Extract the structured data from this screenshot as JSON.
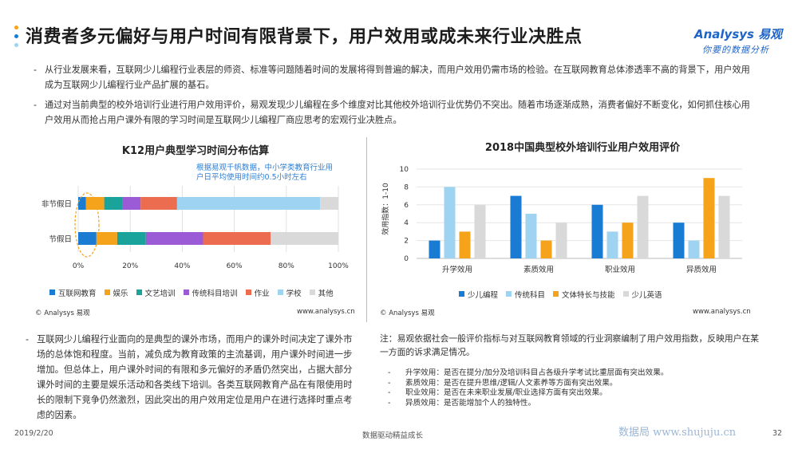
{
  "header": {
    "title": "消费者多元偏好与用户时间有限背景下，用户效用或成未来行业决胜点",
    "brand_name": "Analysys 易观",
    "brand_tagline": "你要的数据分析"
  },
  "intro": {
    "paragraph_1": "从行业发展来看，互联网少儿编程行业表层的师资、标准等问题随着时间的发展将得到普遍的解决，而用户效用仍需市场的检验。在互联网教育总体渗透率不高的背景下，用户效用成为互联网少儿编程行业产品扩展的基石。",
    "paragraph_2": "通过对当前典型的校外培训行业进行用户效用评价，易观发现少儿编程在多个维度对比其他校外培训行业优势仍不突出。随着市场逐渐成熟，消费者偏好不断变化，如何抓住核心用户效用从而抢占用户课外有限的学习时间是互联网少儿编程厂商应思考的宏观行业决胜点。"
  },
  "left_chart": {
    "source": "© Analysys 易观",
    "site": "www.analysys.cn",
    "annotation": "根据易观千帆数据，中小学类教育行业用户日平均使用时间约0.5小时左右"
  },
  "right_chart": {
    "source": "© Analysys 易观",
    "site": "www.analysys.cn"
  },
  "chart_data": [
    {
      "type": "bar",
      "orientation": "horizontal",
      "stacked": true,
      "title": "K12用户典型学习时间分布估算",
      "categories": [
        "非节假日",
        "节假日"
      ],
      "series": [
        {
          "name": "互联网教育",
          "color": "#1a7bd2",
          "values": [
            3,
            7
          ]
        },
        {
          "name": "娱乐",
          "color": "#f5a31a",
          "values": [
            7,
            8
          ]
        },
        {
          "name": "文艺培训",
          "color": "#19a39a",
          "values": [
            7,
            11
          ]
        },
        {
          "name": "传统科目培训",
          "color": "#9b5bd6",
          "values": [
            7,
            22
          ]
        },
        {
          "name": "作业",
          "color": "#ec6c50",
          "values": [
            14,
            26
          ]
        },
        {
          "name": "学校",
          "color": "#9fd3f2",
          "values": [
            55,
            0
          ]
        },
        {
          "name": "其他",
          "color": "#d9d9d9",
          "values": [
            7,
            26
          ]
        }
      ],
      "xlim": [
        0,
        100
      ],
      "x_ticks": [
        "0%",
        "20%",
        "40%",
        "60%",
        "80%",
        "100%"
      ],
      "legend": "bottom"
    },
    {
      "type": "bar",
      "title": "2018中国典型校外培训行业用户效用评价",
      "categories": [
        "升学效用",
        "素质效用",
        "职业效用",
        "异质效用"
      ],
      "series": [
        {
          "name": "少儿编程",
          "color": "#1a7bd2",
          "values": [
            2,
            7,
            6,
            4
          ]
        },
        {
          "name": "传统科目",
          "color": "#9fd3f2",
          "values": [
            8,
            5,
            3,
            2
          ]
        },
        {
          "name": "文体特长与技能",
          "color": "#f5a31a",
          "values": [
            3,
            2,
            4,
            9
          ]
        },
        {
          "name": "少儿英语",
          "color": "#d9d9d9",
          "values": [
            6,
            4,
            7,
            7
          ]
        }
      ],
      "ylabel": "效用指数：1-10",
      "ylim": [
        0,
        10
      ],
      "y_ticks": [
        "0",
        "2",
        "4",
        "6",
        "8",
        "10"
      ],
      "legend": "bottom"
    }
  ],
  "bottom_left": {
    "text": "互联网少儿编程行业面向的是典型的课外市场，而用户的课外时间决定了课外市场的总体饱和程度。当前，减负成为教育政策的主流基调，用户课外时间进一步增加。但总体上，用户课外时间的有限和多元偏好的矛盾仍然突出，占据大部分课外时间的主要是娱乐活动和各类线下培训。各类互联网教育产品在有限使用时长的限制下竞争仍然激烈，因此突出的用户效用定位是用户在进行选择时重点考虑的因素。"
  },
  "bottom_right": {
    "note": "注：易观依据社会一般评价指标与对互联网教育领域的行业洞察编制了用户效用指数，反映用户在某一方面的诉求满足情况。",
    "bullets": [
      "升学效用：是否在提分/加分及培训科目占各级升学考试比重层面有突出效果。",
      "素质效用：是否在提升思维/逻辑/人文素养等方面有突出效果。",
      "职业效用：是否在未来职业发展/职业选择方面有突出效果。",
      "异质效用：是否能增加个人的独特性。"
    ]
  },
  "footer": {
    "date": "2019/2/20",
    "slogan": "数据驱动精益成长",
    "site_watermark": "数据局 www.shujuju.cn",
    "page": "32"
  }
}
